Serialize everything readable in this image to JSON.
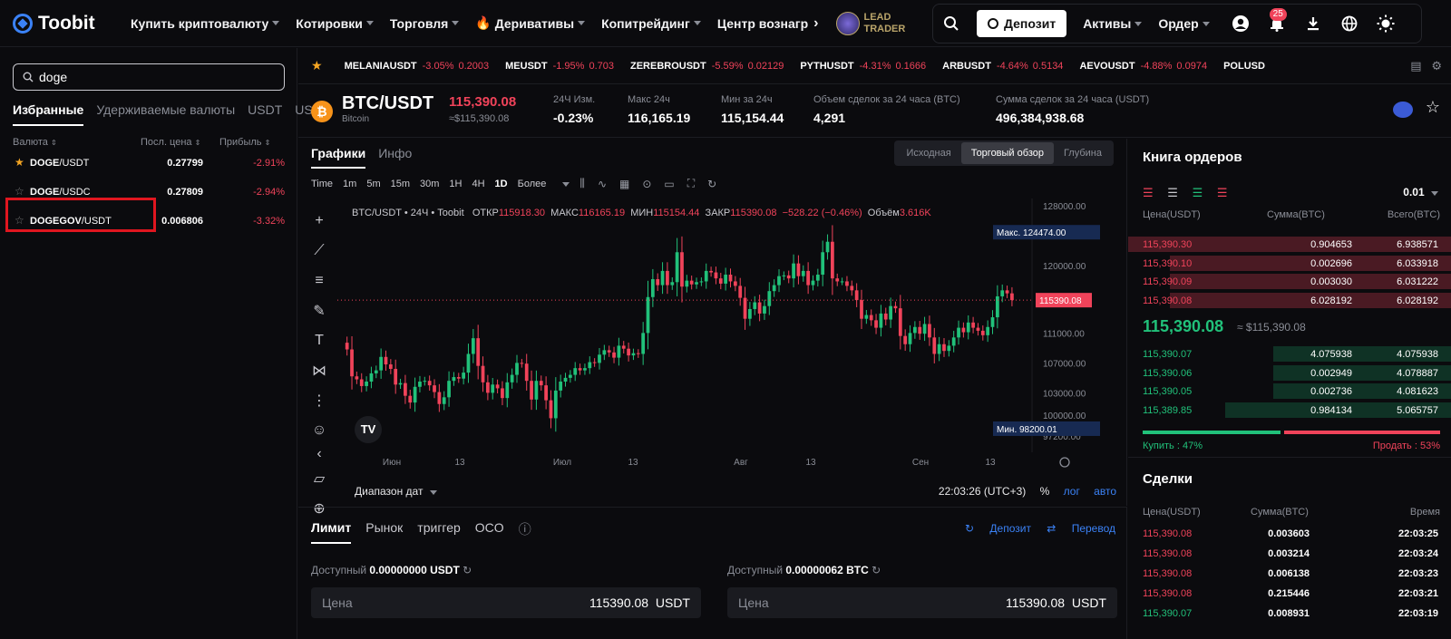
{
  "nav": {
    "logo": "Toobit",
    "items": [
      {
        "label": "Купить криптовалюту",
        "caret": true
      },
      {
        "label": "Котировки",
        "caret": true
      },
      {
        "label": "Торговля",
        "caret": true
      },
      {
        "label": "Деривативы",
        "caret": true,
        "flame": true
      },
      {
        "label": "Копитрейдинг",
        "caret": true
      },
      {
        "label": "Центр вознагр",
        "caret": false
      }
    ],
    "lead_trader": [
      "LEAD",
      "TRADER"
    ],
    "deposit": "Депозит",
    "assets": "Активы",
    "orders": "Ордер",
    "notifications": "25"
  },
  "left": {
    "search_value": "doge",
    "tabs": [
      "Избранные",
      "Удерживаемые валюты",
      "USDT",
      "US"
    ],
    "headers": {
      "currency": "Валюта",
      "last_price": "Посл. цена",
      "change": "Прибыль"
    },
    "pairs": [
      {
        "base": "DOGE",
        "quote": "/USDT",
        "price": "0.27799",
        "change": "-2.91%",
        "fav": true
      },
      {
        "base": "DOGE",
        "quote": "/USDC",
        "price": "0.27809",
        "change": "-2.94%",
        "fav": false
      },
      {
        "base": "DOGEGOV",
        "quote": "/USDT",
        "price": "0.006806",
        "change": "-3.32%",
        "fav": false
      }
    ]
  },
  "ticker": [
    {
      "sym": "MELANIAUSDT",
      "chg": "-3.05%",
      "price": "0.2003"
    },
    {
      "sym": "MEUSDT",
      "chg": "-1.95%",
      "price": "0.703"
    },
    {
      "sym": "ZEREBROUSDT",
      "chg": "-5.59%",
      "price": "0.02129"
    },
    {
      "sym": "PYTHUSDT",
      "chg": "-4.31%",
      "price": "0.1666"
    },
    {
      "sym": "ARBUSDT",
      "chg": "-4.64%",
      "price": "0.5134"
    },
    {
      "sym": "AEVOUSDT",
      "chg": "-4.88%",
      "price": "0.0974"
    },
    {
      "sym": "POLUSD",
      "chg": "",
      "price": ""
    }
  ],
  "market": {
    "pair": "BTC/USDT",
    "name": "Bitcoin",
    "last": "115,390.08",
    "last_usd": "≈$115,390.08",
    "stats": [
      {
        "label": "24Ч Изм.",
        "value": "-0.23%",
        "red": true
      },
      {
        "label": "Макс 24ч",
        "value": "116,165.19"
      },
      {
        "label": "Мин за 24ч",
        "value": "115,154.44"
      },
      {
        "label": "Объем сделок за 24 часа (BTC)",
        "value": "4,291"
      },
      {
        "label": "Сумма сделок за 24 часа (USDT)",
        "value": "496,384,938.68"
      }
    ]
  },
  "chart_tabs": [
    "Графики",
    "Инфо"
  ],
  "view_tabs": [
    "Исходная",
    "Торговый обзор",
    "Глубина"
  ],
  "timeframes": [
    "Time",
    "1m",
    "5m",
    "15m",
    "30m",
    "1H",
    "4H",
    "1D",
    "Более"
  ],
  "ohlc": {
    "title": "BTC/USDT • 24Ч • Toobit",
    "open_l": "ОТКР",
    "open": "115918.30",
    "high_l": "МАКС",
    "high": "116165.19",
    "low_l": "МИН",
    "low": "115154.44",
    "close_l": "ЗАКР",
    "close": "115390.08",
    "change": "−528.22 (−0.46%)",
    "vol_l": "Объём",
    "vol": "3.616K"
  },
  "chart_data": {
    "type": "candlestick",
    "y_ticks": [
      "128000.00",
      "120000.00",
      "111000.00",
      "107000.00",
      "103000.00",
      "100000.00",
      "97200.00"
    ],
    "x_ticks": [
      "Июн",
      "13",
      "Июл",
      "13",
      "Авг",
      "13",
      "Сен",
      "13"
    ],
    "max_label": "Макс.",
    "max_value": "124474.00",
    "min_label": "Мин.",
    "min_value": "98200.01",
    "current_price": "115390.08",
    "colors": {
      "up": "#21c17a",
      "down": "#f0435a"
    },
    "closes": [
      108800,
      105200,
      104800,
      103900,
      104500,
      105600,
      106000,
      107800,
      106800,
      106200,
      104100,
      104300,
      102600,
      101700,
      103800,
      104500,
      104600,
      104000,
      103100,
      101500,
      102400,
      104600,
      105100,
      104900,
      105700,
      108200,
      110300,
      106600,
      104400,
      103000,
      104100,
      103600,
      102300,
      104400,
      105400,
      107000,
      106900,
      104600,
      102100,
      104600,
      104000,
      102000,
      99600,
      103300,
      104500,
      105000,
      105400,
      106300,
      106000,
      106300,
      107100,
      107000,
      108100,
      108700,
      108400,
      107700,
      109300,
      108900,
      108000,
      108300,
      108200,
      111000,
      115800,
      118200,
      117400,
      119300,
      117400,
      117800,
      121800,
      117200,
      118000,
      117500,
      117800,
      117900,
      119300,
      119100,
      118300,
      117600,
      118800,
      117900,
      117300,
      115700,
      112900,
      114200,
      115100,
      113600,
      114600,
      116600,
      117400,
      118600,
      118700,
      118300,
      120300,
      118600,
      119300,
      117400,
      118000,
      118800,
      121800,
      123200,
      118300,
      117900,
      117900,
      117300,
      116700,
      115400,
      112900,
      113400,
      112700,
      111700,
      113600,
      112800,
      114600,
      114300,
      110600,
      109500,
      111000,
      111800,
      110900,
      112200,
      110400,
      108200,
      109500,
      108600,
      109300,
      110400,
      111700,
      111100,
      112400,
      111700,
      111300,
      110700,
      111800,
      113100,
      115900,
      116700,
      116300,
      115390
    ]
  },
  "range_label": "Диапазон дат",
  "time_display": "22:03:26 (UTC+3)",
  "scale_opts": [
    "%",
    "лог",
    "авто"
  ],
  "order": {
    "tabs": [
      "Лимит",
      "Рынок",
      "триггер",
      "OCO"
    ],
    "links": [
      "Депозит",
      "Перевод"
    ],
    "avail_label": "Доступный",
    "avail_usdt": "0.00000000 USDT",
    "avail_btc": "0.00000062 BTC",
    "price_label": "Цена",
    "price_value": "115390.08",
    "price_unit": "USDT"
  },
  "book": {
    "title": "Книга ордеров",
    "precision": "0.01",
    "headers": {
      "price": "Цена(USDT)",
      "amount": "Сумма(BTC)",
      "total": "Всего(BTC)"
    },
    "asks": [
      {
        "price": "115,390.30",
        "amount": "0.904653",
        "total": "6.938571",
        "depth": 1.0
      },
      {
        "price": "115,390.10",
        "amount": "0.002696",
        "total": "6.033918",
        "depth": 0.87
      },
      {
        "price": "115,390.09",
        "amount": "0.003030",
        "total": "6.031222",
        "depth": 0.87
      },
      {
        "price": "115,390.08",
        "amount": "6.028192",
        "total": "6.028192",
        "depth": 0.87
      }
    ],
    "mid": "115,390.08",
    "mid_usd": "≈ $115,390.08",
    "bids": [
      {
        "price": "115,390.07",
        "amount": "4.075938",
        "total": "4.075938",
        "depth": 0.55
      },
      {
        "price": "115,390.06",
        "amount": "0.002949",
        "total": "4.078887",
        "depth": 0.55
      },
      {
        "price": "115,390.05",
        "amount": "0.002736",
        "total": "4.081623",
        "depth": 0.55
      },
      {
        "price": "115,389.85",
        "amount": "0.984134",
        "total": "5.065757",
        "depth": 0.7
      }
    ],
    "buy_label": "Купить :",
    "buy_pct": "47%",
    "buy_frac": 0.47,
    "sell_label": "Продать :",
    "sell_pct": "53%"
  },
  "trades": {
    "title": "Сделки",
    "headers": {
      "price": "Цена(USDT)",
      "amount": "Сумма(BTC)",
      "time": "Время"
    },
    "rows": [
      {
        "price": "115,390.08",
        "amount": "0.003603",
        "time": "22:03:25",
        "side": "sell"
      },
      {
        "price": "115,390.08",
        "amount": "0.003214",
        "time": "22:03:24",
        "side": "sell"
      },
      {
        "price": "115,390.08",
        "amount": "0.006138",
        "time": "22:03:23",
        "side": "sell"
      },
      {
        "price": "115,390.08",
        "amount": "0.215446",
        "time": "22:03:21",
        "side": "sell"
      },
      {
        "price": "115,390.07",
        "amount": "0.008931",
        "time": "22:03:19",
        "side": "buy"
      }
    ]
  }
}
